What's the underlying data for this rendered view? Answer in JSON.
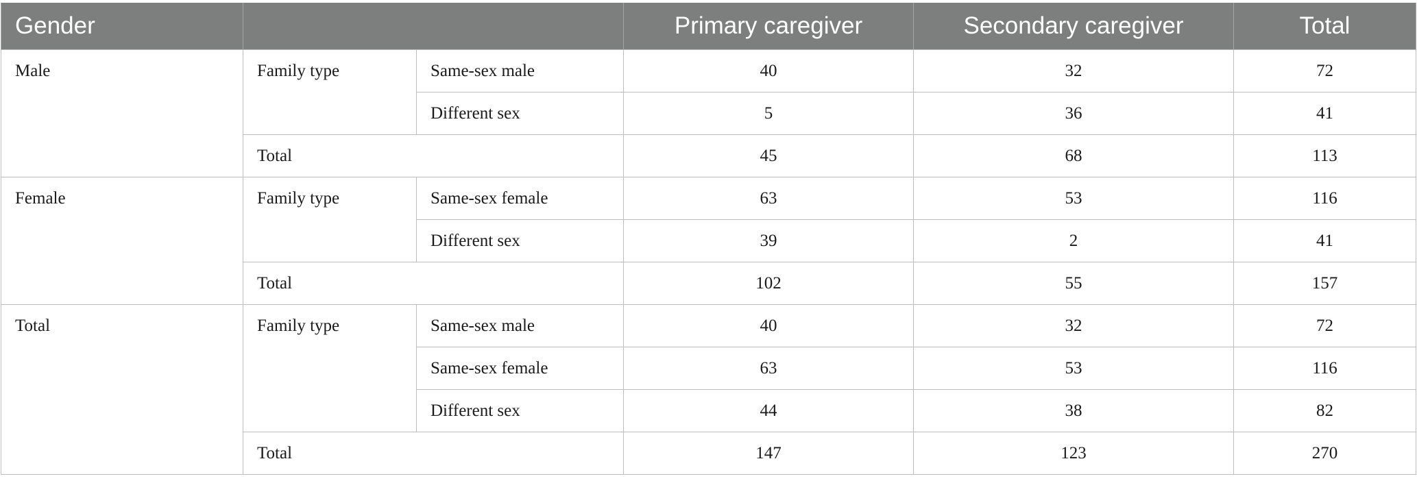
{
  "header": {
    "gender": "Gender",
    "blank": "",
    "primary": "Primary caregiver",
    "secondary": "Secondary caregiver",
    "total": "Total"
  },
  "groups": {
    "male": {
      "label": "Male",
      "family_type": "Family type",
      "rows": [
        {
          "label": "Same-sex male",
          "primary": "40",
          "secondary": "32",
          "total": "72"
        },
        {
          "label": "Different sex",
          "primary": "5",
          "secondary": "36",
          "total": "41"
        }
      ],
      "total": {
        "label": "Total",
        "primary": "45",
        "secondary": "68",
        "total": "113"
      }
    },
    "female": {
      "label": "Female",
      "family_type": "Family type",
      "rows": [
        {
          "label": "Same-sex female",
          "primary": "63",
          "secondary": "53",
          "total": "116"
        },
        {
          "label": "Different sex",
          "primary": "39",
          "secondary": "2",
          "total": "41"
        }
      ],
      "total": {
        "label": "Total",
        "primary": "102",
        "secondary": "55",
        "total": "157"
      }
    },
    "all": {
      "label": "Total",
      "family_type": "Family type",
      "rows": [
        {
          "label": "Same-sex male",
          "primary": "40",
          "secondary": "32",
          "total": "72"
        },
        {
          "label": "Same-sex female",
          "primary": "63",
          "secondary": "53",
          "total": "116"
        },
        {
          "label": "Different sex",
          "primary": "44",
          "secondary": "38",
          "total": "82"
        }
      ],
      "total": {
        "label": "Total",
        "primary": "147",
        "secondary": "123",
        "total": "270"
      }
    }
  }
}
